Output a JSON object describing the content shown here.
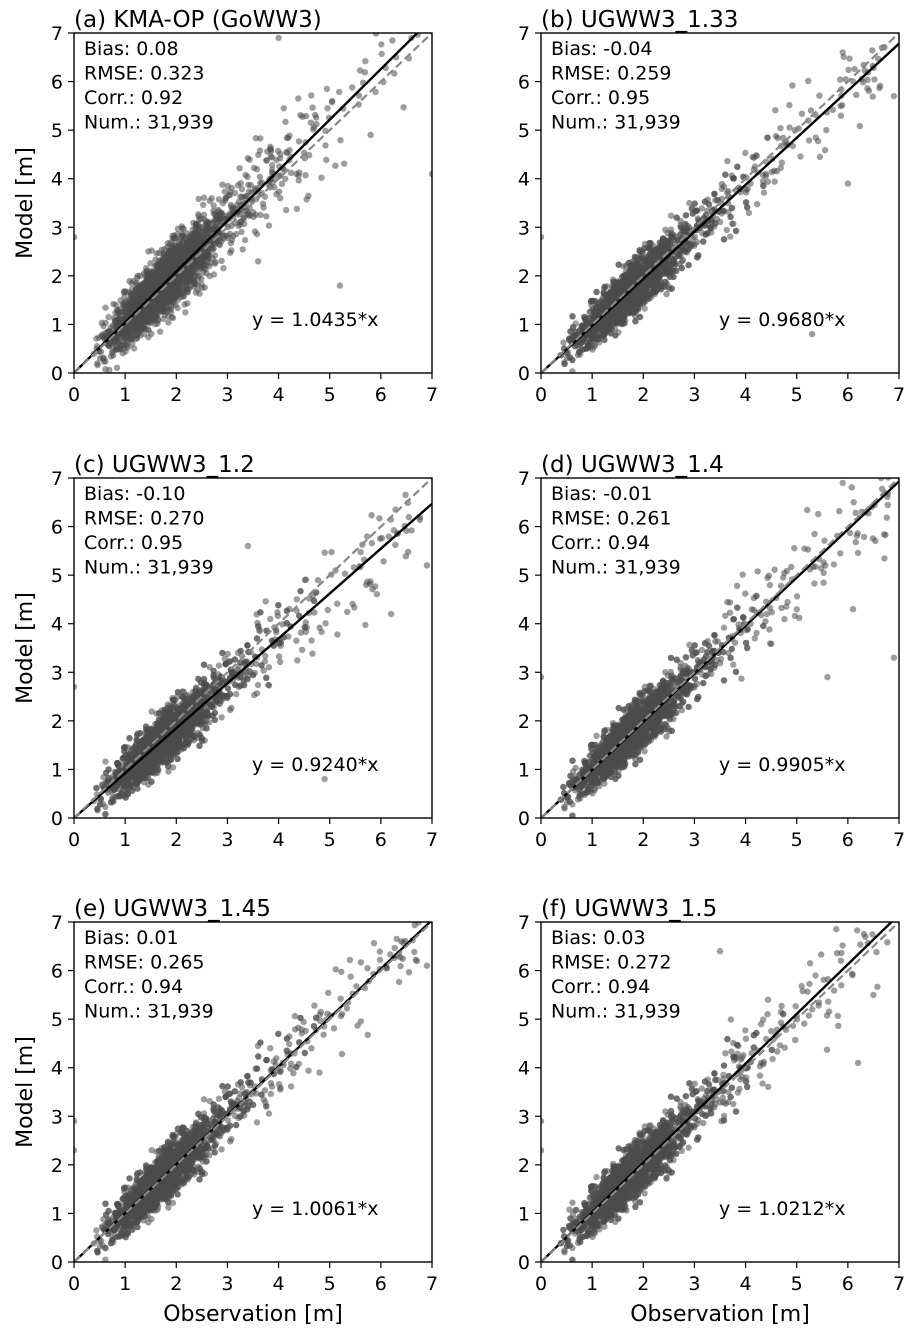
{
  "figure": {
    "xlabel": "Observation [m]",
    "ylabel": "Model [m]"
  },
  "chart_data": [
    {
      "type": "scatter",
      "title": "(a) KMA-OP (GoWW3)",
      "xlabel": "",
      "ylabel": "Model [m]",
      "xlim": [
        0,
        7
      ],
      "ylim": [
        0,
        7
      ],
      "xticks": [
        0,
        1,
        2,
        3,
        4,
        5,
        6,
        7
      ],
      "yticks": [
        0,
        1,
        2,
        3,
        4,
        5,
        6,
        7
      ],
      "stats": [
        "Bias: 0.08",
        "RMSE: 0.323",
        "Corr.: 0.92",
        "Num.: 31,939"
      ],
      "equation": "y = 1.0435*x",
      "slope": 1.0435,
      "lines": [
        {
          "style": "solid",
          "color": "#000000",
          "x": [
            0,
            7
          ],
          "y": [
            0,
            7.3
          ]
        },
        {
          "style": "dashed",
          "color": "#888888",
          "x": [
            0,
            7
          ],
          "y": [
            0,
            7
          ]
        }
      ],
      "scatter": {
        "color": "#4d4d4d",
        "n_points": 31939,
        "spread": 0.32,
        "approx_points": [
          [
            6.6,
            6.9
          ],
          [
            7.0,
            4.1
          ],
          [
            3.6,
            2.3
          ],
          [
            5.2,
            1.8
          ],
          [
            0.0,
            2.8
          ],
          [
            4.0,
            6.9
          ],
          [
            5.8,
            4.9
          ]
        ]
      },
      "grid": false
    },
    {
      "type": "scatter",
      "title": "(b) UGWW3_1.33",
      "xlabel": "",
      "ylabel": "",
      "xlim": [
        0,
        7
      ],
      "ylim": [
        0,
        7
      ],
      "xticks": [
        0,
        1,
        2,
        3,
        4,
        5,
        6,
        7
      ],
      "yticks": [
        0,
        1,
        2,
        3,
        4,
        5,
        6,
        7
      ],
      "stats": [
        "Bias: -0.04",
        "RMSE: 0.259",
        "Corr.: 0.95",
        "Num.: 31,939"
      ],
      "equation": "y = 0.9680*x",
      "slope": 0.968,
      "lines": [
        {
          "style": "solid",
          "color": "#000000",
          "x": [
            0,
            7
          ],
          "y": [
            0,
            6.78
          ]
        },
        {
          "style": "dashed",
          "color": "#888888",
          "x": [
            0,
            7
          ],
          "y": [
            0,
            7
          ]
        }
      ],
      "scatter": {
        "color": "#4d4d4d",
        "n_points": 31939,
        "spread": 0.26,
        "approx_points": [
          [
            6.0,
            3.9
          ],
          [
            0.0,
            2.8
          ],
          [
            5.3,
            0.8
          ],
          [
            6.9,
            5.7
          ],
          [
            5.9,
            6.6
          ]
        ]
      },
      "grid": false
    },
    {
      "type": "scatter",
      "title": "(c) UGWW3_1.2",
      "xlabel": "",
      "ylabel": "Model [m]",
      "xlim": [
        0,
        7
      ],
      "ylim": [
        0,
        7
      ],
      "xticks": [
        0,
        1,
        2,
        3,
        4,
        5,
        6,
        7
      ],
      "yticks": [
        0,
        1,
        2,
        3,
        4,
        5,
        6,
        7
      ],
      "stats": [
        "Bias: -0.10",
        "RMSE: 0.270",
        "Corr.: 0.95",
        "Num.: 31,939"
      ],
      "equation": "y = 0.9240*x",
      "slope": 0.924,
      "lines": [
        {
          "style": "solid",
          "color": "#000000",
          "x": [
            0,
            7
          ],
          "y": [
            0,
            6.47
          ]
        },
        {
          "style": "dashed",
          "color": "#888888",
          "x": [
            0,
            7
          ],
          "y": [
            0,
            7
          ]
        }
      ],
      "scatter": {
        "color": "#4d4d4d",
        "n_points": 31939,
        "spread": 0.27,
        "approx_points": [
          [
            0.0,
            2.7
          ],
          [
            3.4,
            5.6
          ],
          [
            6.9,
            5.2
          ],
          [
            6.2,
            4.2
          ],
          [
            4.9,
            0.8
          ]
        ]
      },
      "grid": false
    },
    {
      "type": "scatter",
      "title": "(d) UGWW3_1.4",
      "xlabel": "",
      "ylabel": "",
      "xlim": [
        0,
        7
      ],
      "ylim": [
        0,
        7
      ],
      "xticks": [
        0,
        1,
        2,
        3,
        4,
        5,
        6,
        7
      ],
      "yticks": [
        0,
        1,
        2,
        3,
        4,
        5,
        6,
        7
      ],
      "stats": [
        "Bias: -0.01",
        "RMSE: 0.261",
        "Corr.: 0.94",
        "Num.: 31,939"
      ],
      "equation": "y = 0.9905*x",
      "slope": 0.9905,
      "lines": [
        {
          "style": "solid",
          "color": "#000000",
          "x": [
            0,
            7
          ],
          "y": [
            0,
            6.93
          ]
        },
        {
          "style": "dashed",
          "color": "#888888",
          "x": [
            0,
            7
          ],
          "y": [
            0,
            7
          ]
        }
      ],
      "scatter": {
        "color": "#4d4d4d",
        "n_points": 31939,
        "spread": 0.26,
        "approx_points": [
          [
            0.0,
            2.9
          ],
          [
            6.1,
            4.3
          ],
          [
            6.9,
            3.3
          ],
          [
            5.9,
            6.9
          ],
          [
            5.6,
            2.9
          ]
        ]
      },
      "grid": false
    },
    {
      "type": "scatter",
      "title": "(e) UGWW3_1.45",
      "xlabel": "Observation [m]",
      "ylabel": "Model [m]",
      "xlim": [
        0,
        7
      ],
      "ylim": [
        0,
        7
      ],
      "xticks": [
        0,
        1,
        2,
        3,
        4,
        5,
        6,
        7
      ],
      "yticks": [
        0,
        1,
        2,
        3,
        4,
        5,
        6,
        7
      ],
      "stats": [
        "Bias: 0.01",
        "RMSE: 0.265",
        "Corr.: 0.94",
        "Num.: 31,939"
      ],
      "equation": "y = 1.0061*x",
      "slope": 1.0061,
      "lines": [
        {
          "style": "solid",
          "color": "#000000",
          "x": [
            0,
            7
          ],
          "y": [
            0,
            7.04
          ]
        },
        {
          "style": "dashed",
          "color": "#888888",
          "x": [
            0,
            7
          ],
          "y": [
            0,
            7
          ]
        }
      ],
      "scatter": {
        "color": "#4d4d4d",
        "n_points": 31939,
        "spread": 0.265,
        "approx_points": [
          [
            0.0,
            2.9
          ],
          [
            0.0,
            2.3
          ],
          [
            6.9,
            6.1
          ],
          [
            6.4,
            6.6
          ],
          [
            4.8,
            3.9
          ]
        ]
      },
      "grid": false
    },
    {
      "type": "scatter",
      "title": "(f) UGWW3_1.5",
      "xlabel": "Observation [m]",
      "ylabel": "",
      "xlim": [
        0,
        7
      ],
      "ylim": [
        0,
        7
      ],
      "xticks": [
        0,
        1,
        2,
        3,
        4,
        5,
        6,
        7
      ],
      "yticks": [
        0,
        1,
        2,
        3,
        4,
        5,
        6,
        7
      ],
      "stats": [
        "Bias: 0.03",
        "RMSE: 0.272",
        "Corr.: 0.94",
        "Num.: 31,939"
      ],
      "equation": "y = 1.0212*x",
      "slope": 1.0212,
      "lines": [
        {
          "style": "solid",
          "color": "#000000",
          "x": [
            0,
            7
          ],
          "y": [
            0,
            7.15
          ]
        },
        {
          "style": "dashed",
          "color": "#888888",
          "x": [
            0,
            7
          ],
          "y": [
            0,
            7
          ]
        }
      ],
      "scatter": {
        "color": "#4d4d4d",
        "n_points": 31939,
        "spread": 0.27,
        "approx_points": [
          [
            0.0,
            2.9
          ],
          [
            0.0,
            2.3
          ],
          [
            3.5,
            6.4
          ],
          [
            6.2,
            4.1
          ],
          [
            6.5,
            5.5
          ]
        ]
      },
      "grid": false
    }
  ]
}
